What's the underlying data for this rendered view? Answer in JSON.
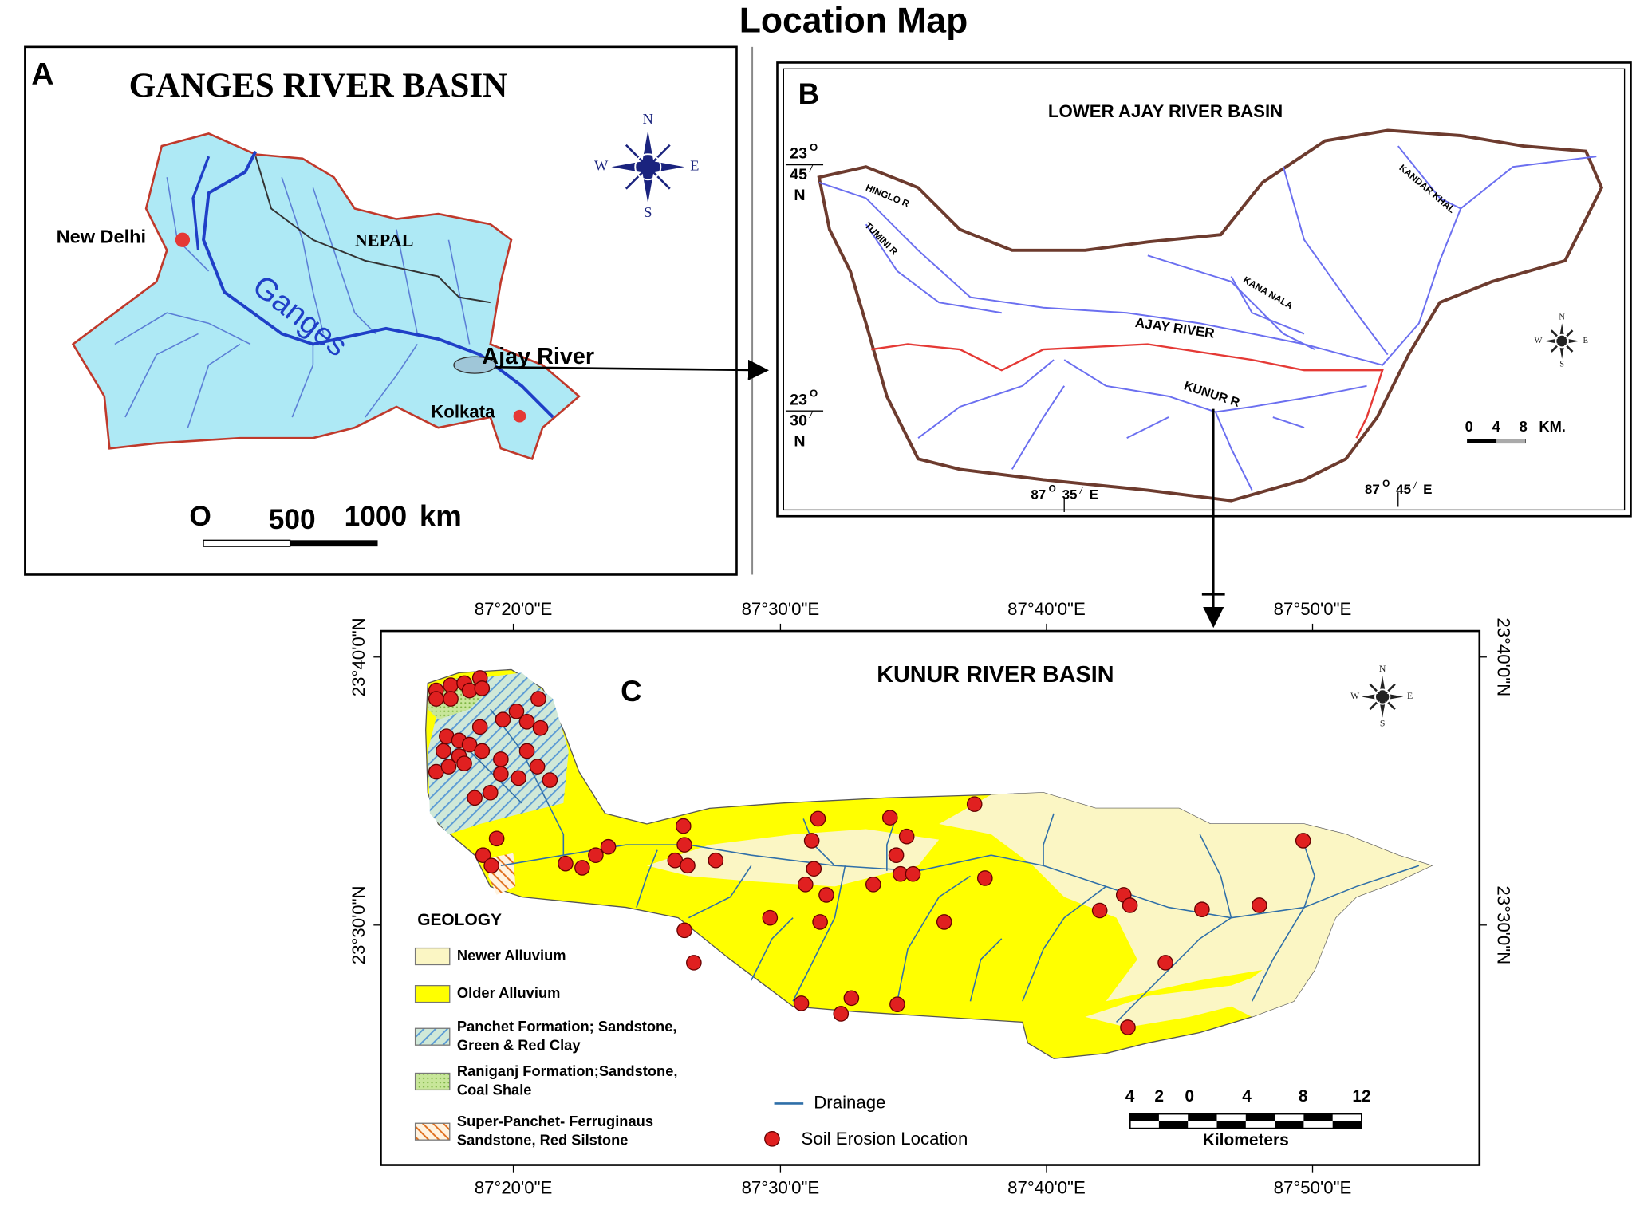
{
  "title": "Location Map",
  "panel_a": {
    "letter": "A",
    "title": "GANGES RIVER BASIN",
    "labels": {
      "new_delhi": "New Delhi",
      "nepal": "NEPAL",
      "ganges": "Ganges",
      "ajay": "Ajay River",
      "kolkata": "Kolkata"
    },
    "compass": {
      "n": "N",
      "s": "S",
      "w": "W",
      "e": "E"
    },
    "scale": {
      "zero": "O",
      "mid": "500",
      "max": "1000",
      "unit": "km"
    }
  },
  "panel_b": {
    "letter": "B",
    "title": "LOWER AJAY RIVER BASIN",
    "rivers": {
      "hinglo": "HINGLO R",
      "tumini": "TUMINI R",
      "kandar": "KANDAR KHAL",
      "kana": "KANA NALA",
      "ajay": "AJAY RIVER",
      "kunur": "KUNUR R"
    },
    "lat_top": {
      "deg": "23",
      "sup": "O",
      "min": "45",
      "prime": "/",
      "hemi": "N"
    },
    "lat_bottom": {
      "deg": "23",
      "sup": "O",
      "min": "30",
      "prime": "/",
      "hemi": "N"
    },
    "lon_left": {
      "deg": "87",
      "sup": "O",
      "min": "35",
      "prime": "/",
      "hemi": "E"
    },
    "lon_right": {
      "deg": "87",
      "sup": "O",
      "min": "45",
      "prime": "/",
      "hemi": "E"
    },
    "compass": {
      "n": "N",
      "s": "S",
      "w": "W",
      "e": "E"
    },
    "scale": {
      "zero": "0",
      "mid": "4",
      "max": "8",
      "unit": "KM."
    }
  },
  "panel_c": {
    "letter": "C",
    "title": "KUNUR RIVER BASIN",
    "lon_ticks": [
      "87°20'0\"E",
      "87°30'0\"E",
      "87°40'0\"E",
      "87°50'0\"E"
    ],
    "lat_ticks": [
      "23°40'0\"N",
      "23°30'0\"N"
    ],
    "compass": {
      "n": "N",
      "s": "S",
      "w": "W",
      "e": "E"
    },
    "geology": {
      "title": "GEOLOGY",
      "items": [
        {
          "lines": [
            "Newer Alluvium"
          ]
        },
        {
          "lines": [
            "Older Alluvium"
          ]
        },
        {
          "lines": [
            "Panchet Formation; Sandstone,",
            "Green & Red Clay"
          ]
        },
        {
          "lines": [
            "Raniganj Formation;Sandstone,",
            " Coal Shale"
          ]
        },
        {
          "lines": [
            "Super-Panchet- Ferruginaus",
            "Sandstone, Red Silstone"
          ]
        }
      ]
    },
    "legend": {
      "drainage": "Drainage",
      "erosion": "Soil Erosion Location"
    },
    "scale": {
      "ticks": [
        "4",
        "2",
        "0",
        "4",
        "8",
        "12"
      ],
      "unit": "Kilometers"
    }
  }
}
